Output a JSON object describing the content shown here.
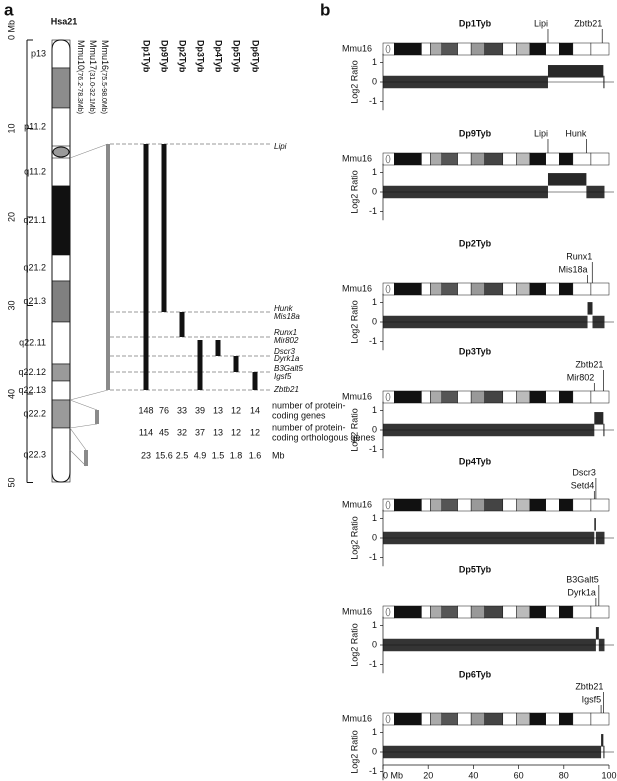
{
  "panel_a": {
    "label": "a",
    "title": "Hsa21",
    "axis_ticks": [
      {
        "value": 0,
        "label": "0 Mb"
      },
      10,
      20,
      30,
      40,
      50
    ],
    "bands": [
      {
        "label": "p13",
        "shade": "#ffffff"
      },
      {
        "label": null,
        "shade": "#8c8c8c"
      },
      {
        "label": "p11.2",
        "shade": "#ffffff"
      },
      {
        "label": null,
        "shade": "#9a9a9a"
      },
      {
        "label": "q11.2",
        "shade": "#ffffff"
      },
      {
        "label": "q21.1",
        "shade": "#111111"
      },
      {
        "label": "q21.2",
        "shade": "#ffffff"
      },
      {
        "label": "q21.3",
        "shade": "#808080"
      },
      {
        "label": "q22.11",
        "shade": "#ffffff"
      },
      {
        "label": "q22.12",
        "shade": "#9a9a9a"
      },
      {
        "label": "q22.13",
        "shade": "#ffffff"
      },
      {
        "label": "q22.2",
        "shade": "#9a9a9a"
      },
      {
        "label": "q22.3",
        "shade": "#ffffff"
      }
    ],
    "mouse_regions": [
      {
        "name": "Mmu10",
        "range": "(76.2-78.3Mb)"
      },
      {
        "name": "Mmu17",
        "range": "(31.0-32.1Mb)"
      },
      {
        "name": "Mmu16",
        "range": "(75.5-98.0Mb)"
      }
    ],
    "duplications": [
      {
        "name": "Dp1Tyb",
        "protein_coding_genes": "148",
        "orthologous_genes": "114",
        "mb": "23"
      },
      {
        "name": "Dp9Tyb",
        "protein_coding_genes": "76",
        "orthologous_genes": "45",
        "mb": "15.6"
      },
      {
        "name": "Dp2Tyb",
        "protein_coding_genes": "33",
        "orthologous_genes": "32",
        "mb": "2.5"
      },
      {
        "name": "Dp3Tyb",
        "protein_coding_genes": "39",
        "orthologous_genes": "37",
        "mb": "4.9"
      },
      {
        "name": "Dp4Tyb",
        "protein_coding_genes": "13",
        "orthologous_genes": "13",
        "mb": "1.5"
      },
      {
        "name": "Dp5Tyb",
        "protein_coding_genes": "12",
        "orthologous_genes": "12",
        "mb": "1.8"
      },
      {
        "name": "Dp6Tyb",
        "protein_coding_genes": "14",
        "orthologous_genes": "12",
        "mb": "1.6"
      }
    ],
    "genes": [
      "Lipi",
      "Hunk",
      "Mis18a",
      "Runx1",
      "Mir802",
      "Dscr3",
      "Dyrk1a",
      "B3Galt5",
      "Igsf5",
      "Zbtb21"
    ],
    "row_labels": [
      [
        "number of protein-",
        "coding genes"
      ],
      [
        "number of protein-",
        "coding orthologous genes"
      ],
      [
        "Mb"
      ]
    ]
  },
  "panel_b": {
    "label": "b",
    "chromosome": "Mmu16",
    "y_axis_label": "Log2 Ratio",
    "xlim": [
      0,
      100
    ],
    "xticks": [
      {
        "value": 0,
        "label": "0 Mb"
      },
      20,
      40,
      60,
      80,
      100
    ],
    "yticks": [
      -1,
      0,
      1
    ],
    "baseline_log2_ratio": 0,
    "data_end_mb": 98,
    "plots": [
      {
        "title": "Dp1Tyb",
        "genes": [
          {
            "name": "Lipi",
            "mb": 73
          },
          {
            "name": "Zbtb21",
            "mb": 97
          }
        ],
        "stacked_labels": false,
        "duplication": [
          73,
          97.5
        ],
        "dup_log2_ratio": 0.55
      },
      {
        "title": "Dp9Tyb",
        "genes": [
          {
            "name": "Lipi",
            "mb": 73
          },
          {
            "name": "Hunk",
            "mb": 90
          }
        ],
        "stacked_labels": false,
        "duplication": [
          73,
          90
        ],
        "dup_log2_ratio": 0.65
      },
      {
        "title": "Dp2Tyb",
        "genes": [
          {
            "name": "Runx1",
            "mb": 92.6
          },
          {
            "name": "Mis18a",
            "mb": 90.5
          }
        ],
        "stacked_labels": true,
        "duplication": [
          90.5,
          92.7
        ],
        "dup_log2_ratio": 0.7
      },
      {
        "title": "Dp3Tyb",
        "genes": [
          {
            "name": "Zbtb21",
            "mb": 97.5
          },
          {
            "name": "Mir802",
            "mb": 93.5
          }
        ],
        "stacked_labels": true,
        "duplication": [
          93.5,
          97.5
        ],
        "dup_log2_ratio": 0.6
      },
      {
        "title": "Dp4Tyb",
        "genes": [
          {
            "name": "Dscr3",
            "mb": 94.2
          },
          {
            "name": "Setd4",
            "mb": 93.5
          }
        ],
        "stacked_labels": true,
        "duplication": [
          93.5,
          94.2
        ],
        "dup_log2_ratio": 0.7
      },
      {
        "title": "Dp5Tyb",
        "genes": [
          {
            "name": "B3Galt5",
            "mb": 95.5
          },
          {
            "name": "Dyrk1a",
            "mb": 94.2
          }
        ],
        "stacked_labels": true,
        "duplication": [
          94.2,
          95.5
        ],
        "dup_log2_ratio": 0.6
      },
      {
        "title": "Dp6Tyb",
        "genes": [
          {
            "name": "Zbtb21",
            "mb": 97.5
          },
          {
            "name": "Igsf5",
            "mb": 96.5
          }
        ],
        "stacked_labels": true,
        "duplication": [
          96.5,
          97.5
        ],
        "dup_log2_ratio": 0.6
      }
    ]
  }
}
